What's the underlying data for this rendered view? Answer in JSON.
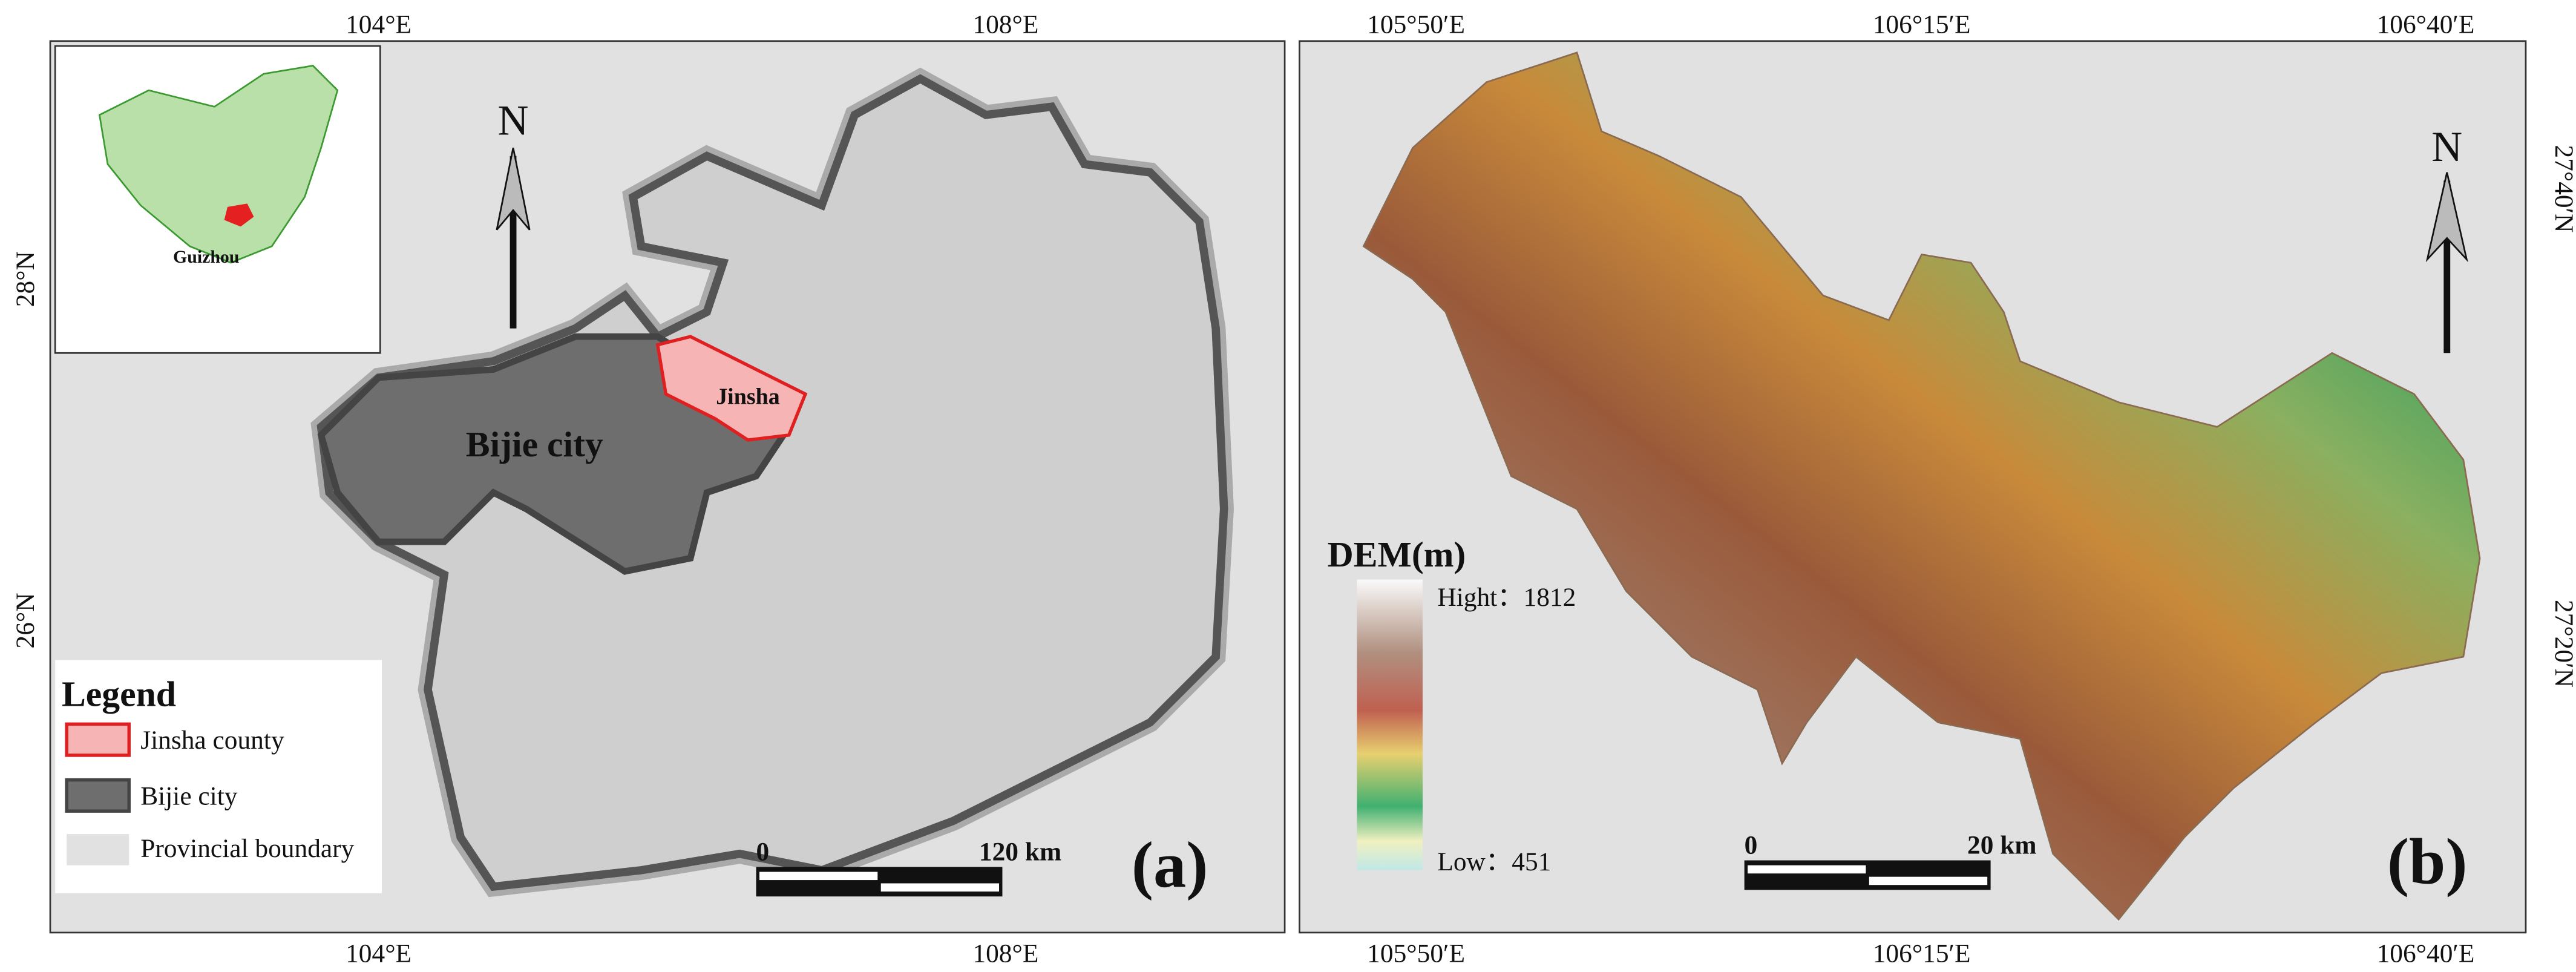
{
  "panel_a": {
    "top_ticks": [
      "104°E",
      "108°E"
    ],
    "bottom_ticks": [
      "104°E",
      "108°E"
    ],
    "left_ticks": [
      "28°N",
      "26°N"
    ],
    "north": "N",
    "inset_label": "Guizhou",
    "jinsha_label": "Jinsha",
    "bijie_label": "Bijie city",
    "legend": {
      "title": "Legend",
      "items": [
        "Jinsha county",
        "Bijie city",
        "Provincial boundary"
      ]
    },
    "scale": {
      "start": "0",
      "end": "120 km"
    },
    "panel_label": "(a)"
  },
  "panel_b": {
    "top_ticks": [
      "105°50′E",
      "106°15′E",
      "106°40′E"
    ],
    "bottom_ticks": [
      "105°50′E",
      "106°15′E",
      "106°40′E"
    ],
    "right_ticks": [
      "27°40′N",
      "27°20′N"
    ],
    "north": "N",
    "dem_title": "DEM(m)",
    "high_label": "Hight：1812",
    "low_label": "Low：451",
    "scale": {
      "start": "0",
      "end": "20 km"
    },
    "panel_label": "(b)"
  }
}
